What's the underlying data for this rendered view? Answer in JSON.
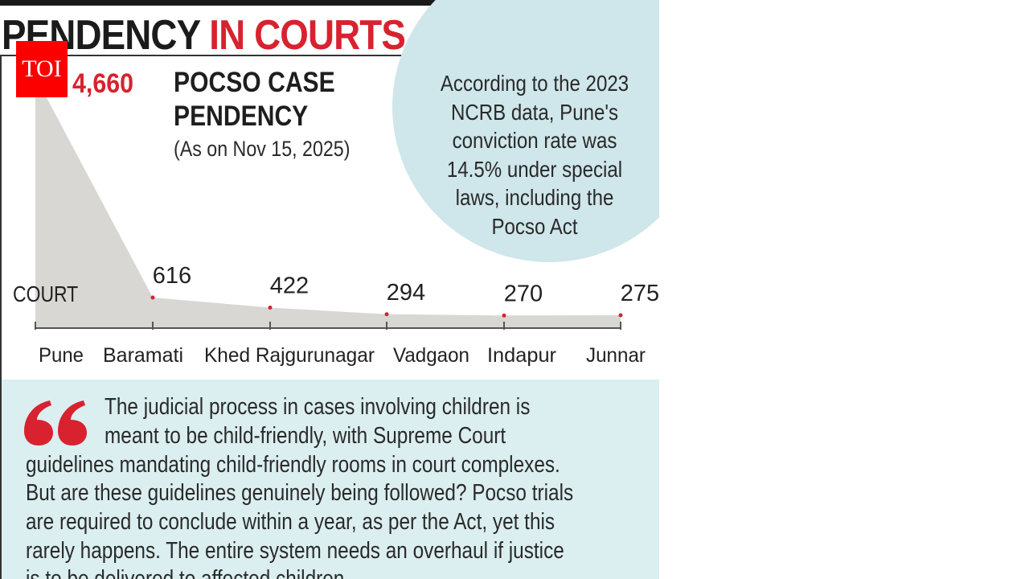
{
  "header": {
    "title_part1": "PENDENCY",
    "title_part2": "IN COURTS"
  },
  "logo": {
    "text": "TOI",
    "color": "#fc0000"
  },
  "chart_data": {
    "type": "area",
    "title": "POCSO CASE PENDENCY",
    "subtitle": "(As on Nov 15, 2025)",
    "xlabel": "COURT",
    "categories": [
      "Pune",
      "Baramati",
      "Khed Rajgurunagar",
      "Vadgaon",
      "Indapur",
      "Junnar"
    ],
    "values": [
      4660,
      616,
      422,
      294,
      270,
      275
    ],
    "data_labels": [
      "4,660",
      "616",
      "422",
      "294",
      "270",
      "275"
    ],
    "fill_color": "#d9d7d3",
    "marker_color": "#d8222f",
    "label_color_first": "#d8222f"
  },
  "note": {
    "lines": [
      "According to the 2023",
      "NCRB data, Pune's",
      "conviction rate was",
      "14.5% under special",
      "laws, including the",
      "Pocso Act"
    ]
  },
  "quote": {
    "icon": "quote-open-icon",
    "lines": [
      "The judicial process in cases involving children is",
      "meant to be child-friendly, with Supreme Court",
      "guidelines mandating child-friendly rooms in court complexes.",
      "But are these guidelines genuinely being followed? Pocso trials",
      "are required to conclude within a year, as per the Act, yet this",
      "rarely happens. The entire system needs an overhaul if justice",
      "is to be delivered to affected children."
    ]
  }
}
